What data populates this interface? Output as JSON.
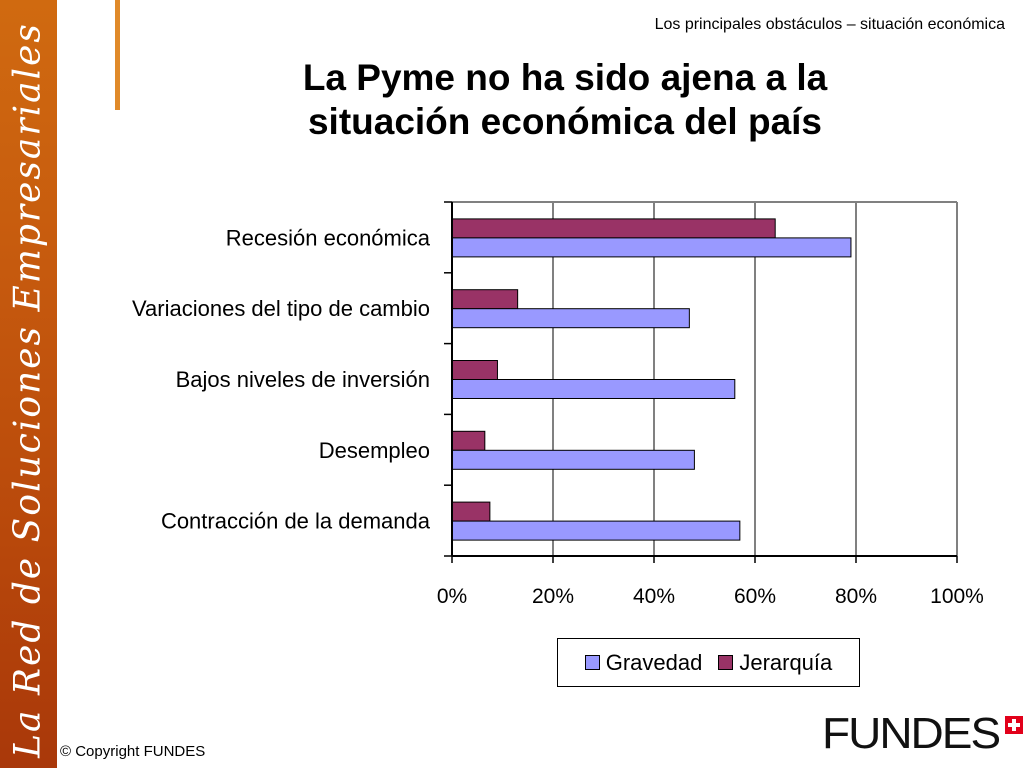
{
  "sidebar": {
    "text": "La Red de Soluciones Empresariales"
  },
  "header": {
    "caption": "Los principales obstáculos – situación económica"
  },
  "slide": {
    "title_line1": "La Pyme no ha sido ajena a la",
    "title_line2": "situación económica del país"
  },
  "colors": {
    "gravedad": "#9999ff",
    "jerarquia": "#993366",
    "sidebar": "#c65a0e",
    "accent": "#e08a2a"
  },
  "chart_data": {
    "type": "bar",
    "orientation": "horizontal",
    "categories": [
      "Recesión económica",
      "Variaciones del tipo de cambio",
      "Bajos niveles de inversión",
      "Desempleo",
      "Contracción de la demanda"
    ],
    "series": [
      {
        "name": "Gravedad",
        "values": [
          79,
          47,
          56,
          48,
          57
        ]
      },
      {
        "name": "Jerarquía",
        "values": [
          64,
          13,
          9,
          6.5,
          7.5
        ]
      }
    ],
    "x_ticks": [
      "0%",
      "20%",
      "40%",
      "60%",
      "80%",
      "100%"
    ],
    "xlim": [
      0,
      100
    ],
    "grid": true,
    "legend_position": "bottom"
  },
  "footer": {
    "copyright": "© Copyright FUNDES",
    "logo_text": "FUNDES"
  }
}
